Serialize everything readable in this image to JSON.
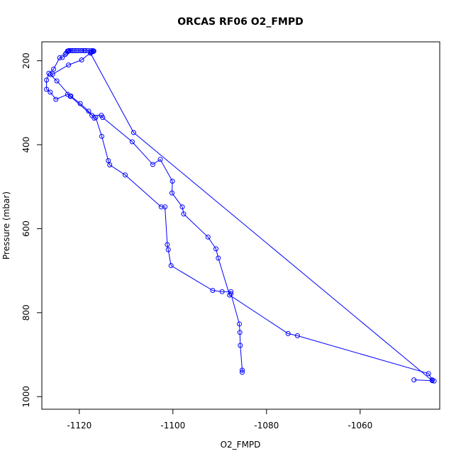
{
  "chart_data": {
    "type": "line",
    "title": "ORCAS RF06 O2_FMPD",
    "xlabel": "O2_FMPD",
    "ylabel": "Pressure (mbar)",
    "xlim": [
      -1128,
      -1043
    ],
    "ylim": [
      1030,
      155
    ],
    "y_reversed": true,
    "x_ticks": [
      -1120,
      -1100,
      -1080,
      -1060
    ],
    "y_ticks": [
      200,
      400,
      600,
      800,
      1000
    ],
    "grid": false,
    "legend": "none",
    "colors": {
      "series": "#0000ff",
      "axes": "#000000"
    },
    "series": [
      {
        "marker": "open-circle",
        "x": [
          -1085.2,
          -1085.2,
          -1085.6,
          -1085.7,
          -1085.8,
          -1087.6,
          -1087.6,
          -1089.5,
          -1091.5,
          -1100.4,
          -1101.0,
          -1101.2,
          -1101.7,
          -1102.5,
          -1110.2,
          -1113.5,
          -1113.8,
          -1115.2,
          -1116.5,
          -1116.8,
          -1118.0,
          -1119.8,
          -1121.8,
          -1122.5,
          -1125.0,
          -1126.2,
          -1127.0,
          -1127.0,
          -1126.5,
          -1125.5,
          -1124.2,
          -1123.6,
          -1123.0,
          -1122.8,
          -1122.5,
          -1122.3,
          -1122.2
        ],
        "y": [
          942,
          937,
          878,
          847,
          827,
          755,
          750,
          750,
          747,
          688,
          650,
          638,
          548,
          548,
          472,
          448,
          438,
          380,
          335,
          337,
          320,
          302,
          284,
          280,
          292,
          275,
          268,
          246,
          230,
          220,
          193,
          192,
          185,
          182,
          178,
          177,
          176
        ]
      },
      {
        "marker": "open-circle",
        "x": [
          -1044.2,
          -1044.6,
          -1045.4,
          -1073.4,
          -1075.4,
          -1087.9,
          -1090.3,
          -1090.8,
          -1092.5,
          -1097.7,
          -1098.0,
          -1100.2,
          -1100.1,
          -1102.7,
          -1104.3,
          -1108.7,
          -1115.0,
          -1115.3,
          -1117.3,
          -1121.9,
          -1124.8,
          -1126.2,
          -1125.7,
          -1122.3,
          -1119.5,
          -1117.5
        ],
        "y": [
          963,
          960,
          945,
          855,
          850,
          758,
          670,
          648,
          620,
          565,
          548,
          515,
          487,
          435,
          447,
          393,
          335,
          330,
          330,
          285,
          248,
          233,
          232,
          210,
          198,
          180
        ]
      },
      {
        "marker": "open-circle",
        "x": [
          -1048.5,
          -1044.6,
          -1108.4,
          -1117.6,
          -1117.3,
          -1117.0,
          -1116.9,
          -1117.1,
          -1117.6,
          -1118.2,
          -1118.7,
          -1119.0,
          -1119.4,
          -1119.8,
          -1120.3,
          -1120.7,
          -1121.1,
          -1121.5,
          -1121.9,
          -1122.2,
          -1122.5
        ],
        "y": [
          960,
          962,
          371,
          182,
          178,
          178,
          177,
          176,
          176,
          176,
          176,
          176,
          176,
          176,
          176,
          176,
          176,
          176,
          176,
          176,
          177
        ]
      }
    ]
  }
}
